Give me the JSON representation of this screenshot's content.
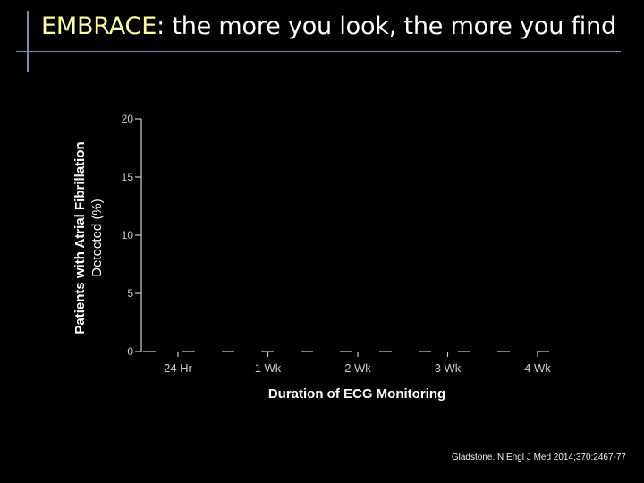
{
  "slide": {
    "title_accent": "EMBRACE",
    "title_rest": ": the more you look, the more you find",
    "citation": "Gladstone. N Engl J Med 2014;370:2467-77"
  },
  "colors": {
    "background": "#000000",
    "title_accent": "#ffff99",
    "decoration": "#7f86b3",
    "axis": "#cccccc"
  },
  "chart_data": {
    "type": "bar",
    "xlabel": "Duration of ECG Monitoring",
    "ylabel": "Patients with Atrial Fibrillation Detected (%)",
    "ylabel_lines": [
      "Patients with Atrial Fibrillation",
      "Detected (%)"
    ],
    "ylim": [
      0,
      20
    ],
    "yticks": [
      0,
      5,
      10,
      15,
      20
    ],
    "categories": [
      "24 Hr",
      "1 Wk",
      "2 Wk",
      "3 Wk",
      "4 Wk"
    ],
    "grid": false
  }
}
